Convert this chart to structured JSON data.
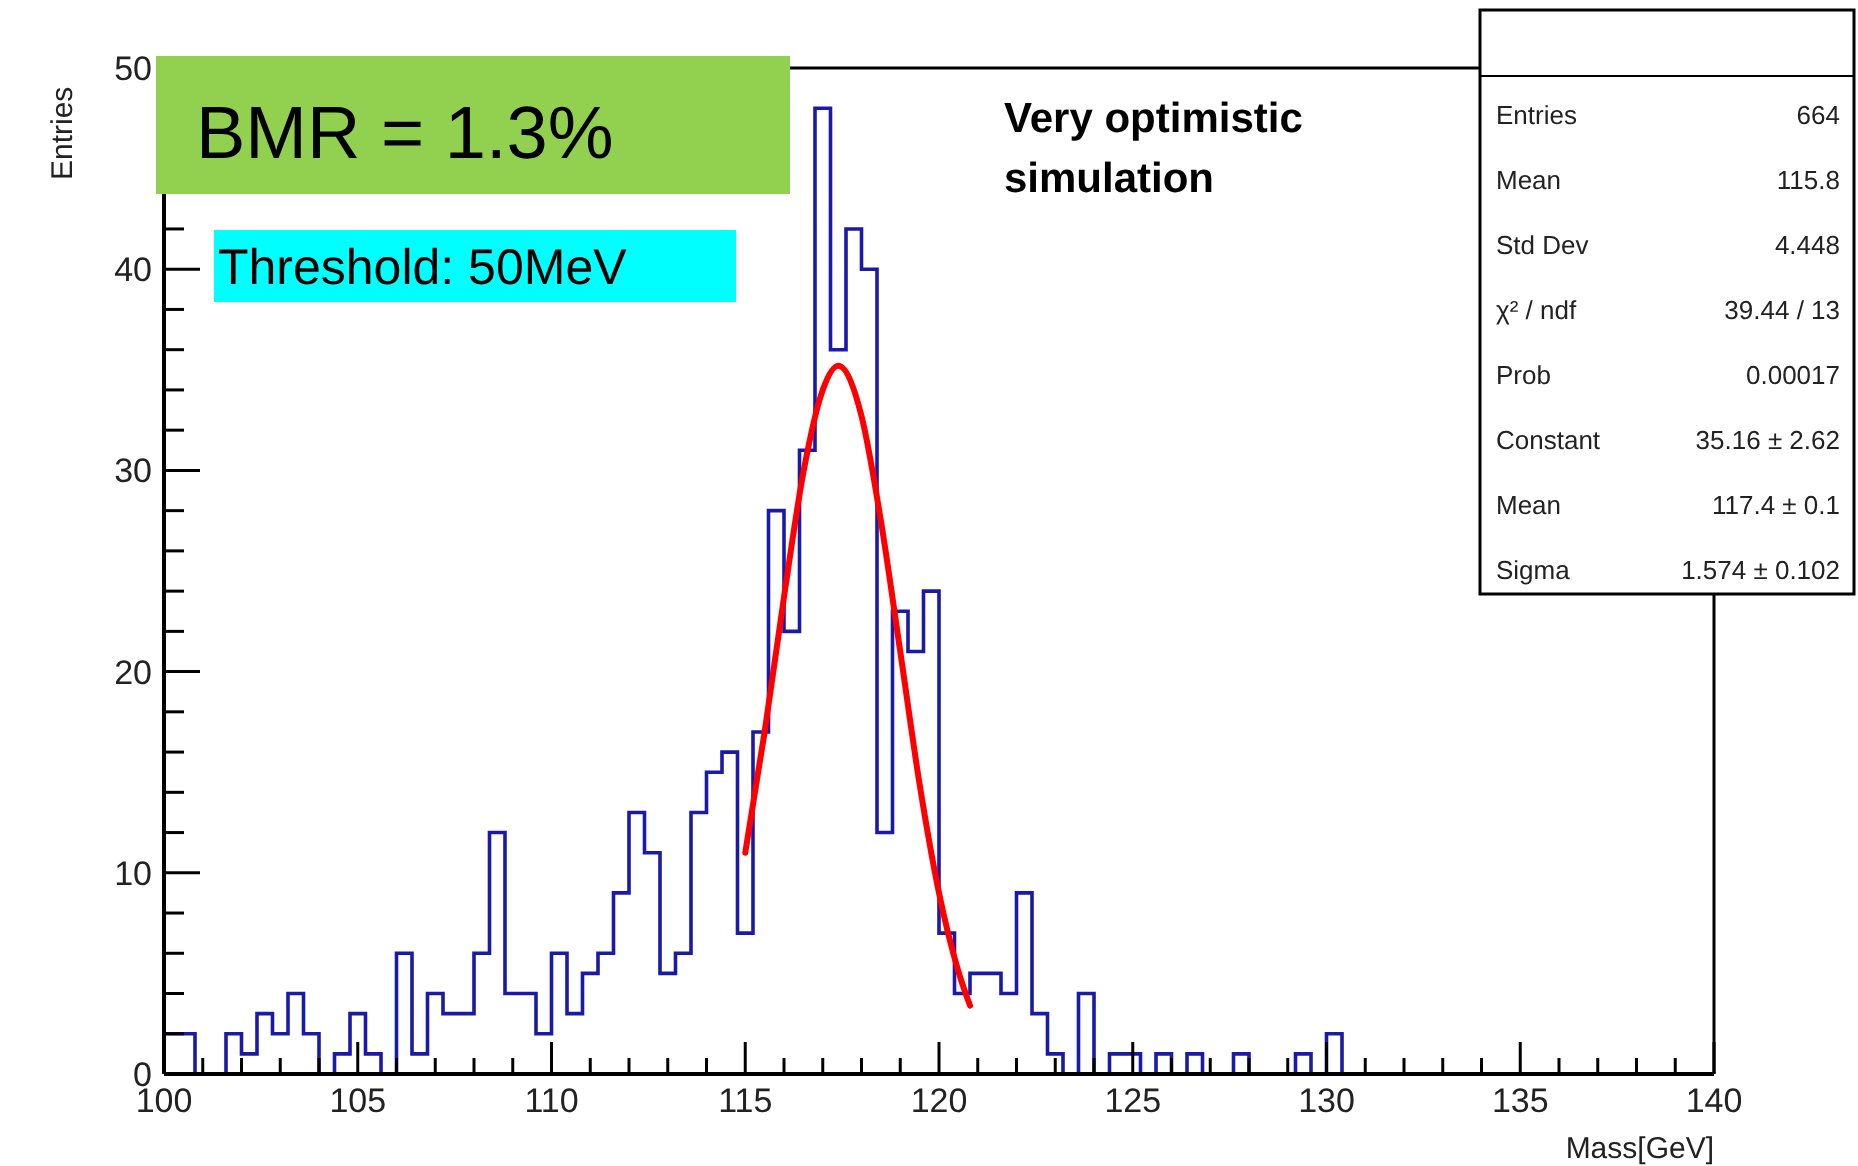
{
  "chart_data": {
    "type": "histogram",
    "xlabel": "Mass[GeV]",
    "ylabel": "Entries",
    "annotations": [
      "BMR = 1.3%",
      "Threshold: 50MeV",
      "Very optimistic simulation",
      "Entries\t664",
      "Mean\t115.8",
      "Std Dev\t4.448",
      "χ² / ndf\t39.44 / 13",
      "Prob\t0.00017",
      "Constant\t35.16 ± 2.62",
      "Mean\t117.4 ± 0.1",
      "Sigma\t1.574 ± 0.102"
    ],
    "bins": [
      100,
      100.4,
      100.8,
      101.2,
      101.6,
      102,
      102.4,
      102.8,
      103.2,
      103.6,
      104,
      104.4,
      104.8,
      105.2,
      105.6,
      106,
      106.4,
      106.8,
      107.2,
      107.6,
      108,
      108.4,
      108.8,
      109.2,
      109.6,
      110,
      110.4,
      110.8,
      111.2,
      111.6,
      112,
      112.4,
      112.8,
      113.2,
      113.6,
      114,
      114.4,
      114.8,
      115.2,
      115.6,
      116,
      116.4,
      116.8,
      117.2,
      117.6,
      118,
      118.4,
      118.8,
      119.2,
      119.6,
      120,
      120.4,
      120.8,
      121.2,
      121.6,
      122,
      122.4,
      122.8,
      123.2,
      123.6,
      124,
      124.4,
      124.8,
      125.2,
      125.6,
      126,
      126.4,
      126.8,
      127.2,
      127.6,
      128,
      128.4,
      128.8,
      129.2,
      129.6,
      130,
      130.4,
      130.8,
      131.2,
      131.6,
      132,
      132.4,
      132.8,
      133.2,
      133.6,
      134,
      134.4,
      134.8,
      135.2,
      135.6,
      136,
      136.4,
      136.8,
      137.2,
      137.6,
      138,
      138.4,
      138.8,
      139.2,
      139.6,
      140
    ],
    "series": [
      {
        "color": "#1a1aa8",
        "values": [
          2,
          2,
          0,
          0,
          2,
          1,
          3,
          2,
          4,
          2,
          0,
          1,
          3,
          1,
          0,
          6,
          1,
          4,
          3,
          3,
          6,
          12,
          4,
          4,
          2,
          6,
          3,
          5,
          6,
          9,
          13,
          11,
          5,
          6,
          13,
          15,
          16,
          7,
          17,
          28,
          22,
          31,
          48,
          36,
          42,
          40,
          12,
          23,
          21,
          24,
          7,
          4,
          5,
          5,
          4,
          9,
          3,
          1,
          0,
          4,
          0,
          1,
          1,
          0,
          1,
          0,
          1,
          0,
          0,
          1,
          0,
          0,
          0,
          1,
          0,
          2,
          0,
          0,
          0,
          0,
          0,
          0,
          0,
          0,
          0,
          0,
          0,
          0,
          0,
          0,
          0,
          0,
          0,
          0,
          0,
          0,
          0,
          0,
          0,
          0
        ]
      },
      {
        "type": "line",
        "color": "#ff0000",
        "x": [
          115,
          115.5,
          116,
          116.5,
          117,
          117.4,
          118,
          118.5,
          119,
          119.5,
          120,
          120.5,
          120.8
        ],
        "values": [
          11,
          17,
          23.7,
          29.9,
          34,
          35.2,
          32.7,
          27.5,
          21,
          14.4,
          9,
          5.1,
          3.4
        ]
      }
    ],
    "xlim": [
      100,
      140
    ],
    "xticks": [
      100,
      {
        "value": 101,
        "label": null
      },
      {
        "value": 102,
        "label": null
      },
      {
        "value": 103,
        "label": null
      },
      {
        "value": 104,
        "label": null
      },
      105,
      {
        "value": 106,
        "label": null
      },
      {
        "value": 107,
        "label": null
      },
      {
        "value": 108,
        "label": null
      },
      {
        "value": 109,
        "label": null
      },
      110,
      {
        "value": 111,
        "label": null
      },
      {
        "value": 112,
        "label": null
      },
      {
        "value": 113,
        "label": null
      },
      {
        "value": 114,
        "label": null
      },
      115,
      {
        "value": 116,
        "label": null
      },
      {
        "value": 117,
        "label": null
      },
      {
        "value": 118,
        "label": null
      },
      {
        "value": 119,
        "label": null
      },
      120,
      {
        "value": 121,
        "label": null
      },
      {
        "value": 122,
        "label": null
      },
      {
        "value": 123,
        "label": null
      },
      {
        "value": 124,
        "label": null
      },
      125,
      {
        "value": 126,
        "label": null
      },
      {
        "value": 127,
        "label": null
      },
      {
        "value": 128,
        "label": null
      },
      {
        "value": 129,
        "label": null
      },
      130,
      {
        "value": 131,
        "label": null
      },
      {
        "value": 132,
        "label": null
      },
      {
        "value": 133,
        "label": null
      },
      {
        "value": 134,
        "label": null
      },
      135,
      {
        "value": 136,
        "label": null
      },
      {
        "value": 137,
        "label": null
      },
      {
        "value": 138,
        "label": null
      },
      {
        "value": 139,
        "label": null
      },
      140
    ],
    "ylim": [
      0,
      50
    ],
    "yticks": [
      0,
      {
        "value": 2,
        "label": null
      },
      {
        "value": 4,
        "label": null
      },
      {
        "value": 6,
        "label": null
      },
      {
        "value": 8,
        "label": null
      },
      10,
      {
        "value": 12,
        "label": null
      },
      {
        "value": 14,
        "label": null
      },
      {
        "value": 16,
        "label": null
      },
      {
        "value": 18,
        "label": null
      },
      20,
      {
        "value": 22,
        "label": null
      },
      {
        "value": 24,
        "label": null
      },
      {
        "value": 26,
        "label": null
      },
      {
        "value": 28,
        "label": null
      },
      30,
      {
        "value": 32,
        "label": null
      },
      {
        "value": 34,
        "label": null
      },
      {
        "value": 36,
        "label": null
      },
      {
        "value": 38,
        "label": null
      },
      40,
      {
        "value": 42,
        "label": null
      },
      {
        "value": 44,
        "label": null
      },
      {
        "value": 46,
        "label": null
      },
      {
        "value": 48,
        "label": null
      },
      50
    ],
    "grid": false,
    "line_style": "solid"
  }
}
